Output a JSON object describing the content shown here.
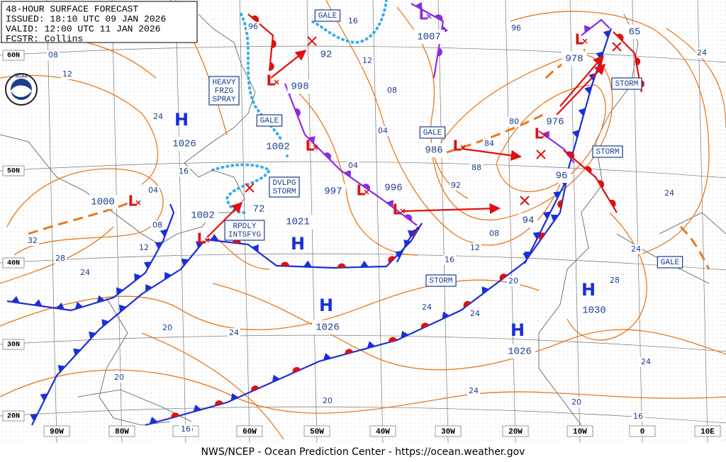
{
  "header": {
    "title": "48-HOUR SURFACE FORECAST",
    "issued": "ISSUED: 18:10 UTC 09 JAN 2026",
    "valid": "VALID: 12:00 UTC 11 JAN 2026",
    "forecaster": "FCSTR: Collins"
  },
  "footer": "NWS/NCEP - Ocean Prediction Center - https://ocean.weather.gov",
  "logo": "NOAA",
  "lat_labels": [
    "60N",
    "50N",
    "40N",
    "30N",
    "20N"
  ],
  "lon_labels": [
    "90W",
    "80W",
    "70W",
    "60W",
    "50W",
    "40W",
    "30W",
    "20W",
    "10W",
    "0",
    "10E"
  ],
  "highs": [
    {
      "symbol": "H",
      "pressure": "1026"
    },
    {
      "symbol": "H",
      "pressure": "1021"
    },
    {
      "symbol": "H",
      "pressure": "1026"
    },
    {
      "symbol": "H",
      "pressure": "1026"
    },
    {
      "symbol": "H",
      "pressure": "1030"
    }
  ],
  "lows": [
    {
      "symbol": "L",
      "pressure": "1000"
    },
    {
      "symbol": "L",
      "pressure": "1002"
    },
    {
      "symbol": "L",
      "pressure": "998"
    },
    {
      "symbol": "L",
      "pressure": "1002"
    },
    {
      "symbol": "L",
      "pressure": "997"
    },
    {
      "symbol": "L",
      "pressure": "996"
    },
    {
      "symbol": "L",
      "pressure": "986"
    },
    {
      "symbol": "L",
      "pressure": "976"
    },
    {
      "symbol": "L",
      "pressure": "978"
    },
    {
      "symbol": "L",
      "pressure": "1007"
    }
  ],
  "future_positions": [
    "92",
    "72",
    "94",
    "96",
    "65"
  ],
  "warnings": [
    "GALE",
    "GALE",
    "GALE",
    "GALE",
    "STORM",
    "STORM",
    "STORM",
    "HEAVY\nFRZG\nSPRAY",
    "DVLPG\nSTORM",
    "RPDLY\nINTSFYG"
  ],
  "isobar_labels": [
    "96",
    "08",
    "12",
    "24",
    "16",
    "04",
    "08",
    "12",
    "32",
    "28",
    "24",
    "20",
    "24",
    "20",
    "20",
    "16",
    "24",
    "24",
    "20",
    "24",
    "20",
    "16",
    "24",
    "28",
    "24",
    "24",
    "24",
    "96",
    "80",
    "84",
    "88",
    "92",
    "08",
    "12",
    "16",
    "04",
    "08",
    "04",
    "16",
    "12"
  ]
}
